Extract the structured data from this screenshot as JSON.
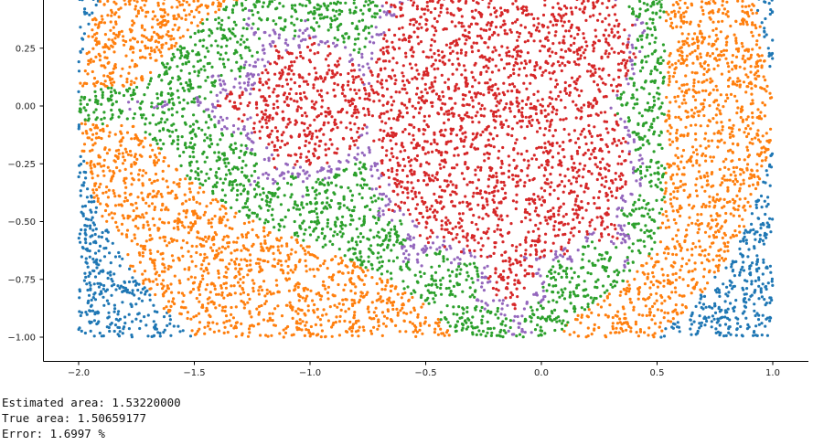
{
  "chart_data": {
    "type": "scatter",
    "title": "",
    "xlabel": "",
    "ylabel": "",
    "xlim": [
      -2.0,
      1.0
    ],
    "ylim": [
      -1.0,
      0.5
    ],
    "x_ticks": [
      "−2.0",
      "−1.5",
      "−1.0",
      "−0.5",
      "0.0",
      "0.5",
      "1.0"
    ],
    "x_tick_values": [
      -2.0,
      -1.5,
      -1.0,
      -0.5,
      0.0,
      0.5,
      1.0
    ],
    "y_ticks": [
      "0.25",
      "0.00",
      "−0.25",
      "−0.50",
      "−0.75",
      "−1.00"
    ],
    "y_tick_values": [
      0.25,
      0.0,
      -0.25,
      -0.5,
      -0.75,
      -1.0
    ],
    "grid": false,
    "legend": "none",
    "series": [
      {
        "class": "escape-fast",
        "color": "#1f77b4",
        "marker": "point"
      },
      {
        "class": "escape-slow",
        "color": "#ff7f0e",
        "marker": "point"
      },
      {
        "class": "near-boundary",
        "color": "#2ca02c",
        "marker": "point"
      },
      {
        "class": "boundary",
        "color": "#9467bd",
        "marker": "point"
      },
      {
        "class": "inside-set",
        "color": "#d62728",
        "marker": "point"
      }
    ],
    "region": "Mandelbrot set sampled uniformly over x in [-2, 1], y in [-1, 0.5]"
  },
  "output": {
    "estimated": "Estimated area: 1.53220000",
    "true": "True area: 1.50659177",
    "error": "Error: 1.6997 %"
  }
}
